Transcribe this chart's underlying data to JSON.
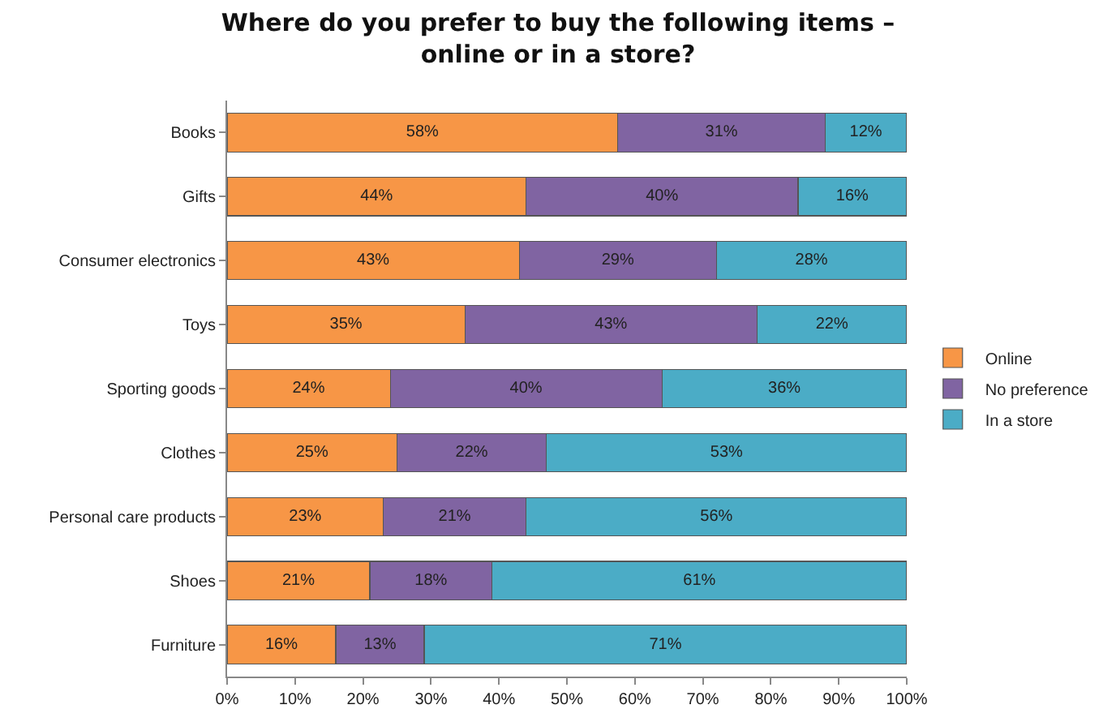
{
  "chart_data": {
    "type": "bar",
    "orientation": "horizontal",
    "stacked": true,
    "title": "Where do you prefer to buy the following items – online or in a store?",
    "categories": [
      "Books",
      "Gifts",
      "Consumer electronics",
      "Toys",
      "Sporting goods",
      "Clothes",
      "Personal care products",
      "Shoes",
      "Furniture"
    ],
    "series": [
      {
        "name": "Online",
        "color": "#f79646",
        "values": [
          57.5,
          44,
          43,
          35,
          24,
          25,
          23,
          21,
          16
        ],
        "value_labels": [
          "58%",
          "44%",
          "43%",
          "35%",
          "24%",
          "25%",
          "23%",
          "21%",
          "16%"
        ]
      },
      {
        "name": "No preference",
        "color": "#8064a2",
        "values": [
          30.5,
          40,
          29,
          43,
          40,
          22,
          21,
          18,
          13
        ],
        "value_labels": [
          "31%",
          "40%",
          "29%",
          "43%",
          "40%",
          "22%",
          "21%",
          "18%",
          "13%"
        ]
      },
      {
        "name": "In a store",
        "color": "#4bacc6",
        "values": [
          12,
          16,
          28,
          22,
          36,
          53,
          56,
          61,
          71
        ],
        "value_labels": [
          "12%",
          "16%",
          "28%",
          "22%",
          "36%",
          "53%",
          "56%",
          "61%",
          "71%"
        ]
      }
    ],
    "xlim": [
      0,
      100
    ],
    "xticks": [
      {
        "value": 0,
        "label": "0%"
      },
      {
        "value": 10,
        "label": "10%"
      },
      {
        "value": 20,
        "label": "20%"
      },
      {
        "value": 30,
        "label": "30%"
      },
      {
        "value": 40,
        "label": "40%"
      },
      {
        "value": 50,
        "label": "50%"
      },
      {
        "value": 60,
        "label": "60%"
      },
      {
        "value": 70,
        "label": "70%"
      },
      {
        "value": 80,
        "label": "80%"
      },
      {
        "value": 90,
        "label": "90%"
      },
      {
        "value": 100,
        "label": "100%"
      }
    ],
    "grid": false,
    "legend": "right"
  }
}
